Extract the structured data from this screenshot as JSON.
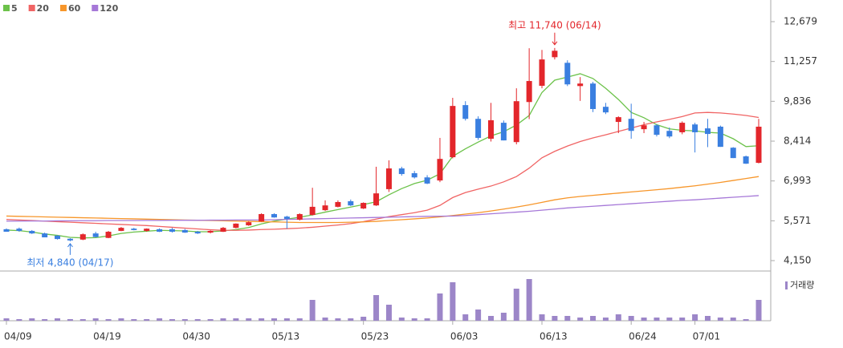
{
  "chart_data": {
    "type": "candlestick",
    "up_color": "#e3262b",
    "down_color": "#3a7fe0",
    "categories": [
      "04/09",
      null,
      null,
      null,
      null,
      null,
      null,
      "04/19",
      null,
      null,
      null,
      null,
      null,
      null,
      "04/30",
      null,
      null,
      null,
      null,
      null,
      null,
      "05/13",
      null,
      null,
      null,
      null,
      null,
      null,
      "05/23",
      null,
      null,
      null,
      null,
      null,
      null,
      "06/03",
      null,
      null,
      null,
      null,
      null,
      null,
      "06/13",
      null,
      null,
      null,
      null,
      null,
      null,
      "06/24",
      null,
      null,
      null,
      null,
      "07/01",
      null,
      null,
      null,
      null,
      null
    ],
    "open": [
      5270,
      5290,
      5210,
      5120,
      5040,
      4930,
      4900,
      5120,
      4960,
      5210,
      5290,
      5210,
      5270,
      5270,
      5240,
      5180,
      5150,
      5180,
      5320,
      5410,
      5550,
      5810,
      5720,
      5610,
      5780,
      5950,
      6070,
      6270,
      6010,
      6120,
      6700,
      7440,
      7270,
      7120,
      7010,
      7840,
      9700,
      9210,
      8500,
      9070,
      8380,
      9810,
      10390,
      11410,
      11210,
      10380,
      10470,
      9640,
      9100,
      9210,
      8840,
      8980,
      8780,
      8730,
      9010,
      8870,
      8930,
      8180,
      7870,
      7640
    ],
    "high": [
      5300,
      5330,
      5240,
      5150,
      5060,
      4950,
      5120,
      5180,
      5210,
      5350,
      5320,
      5300,
      5300,
      5320,
      5280,
      5210,
      5230,
      5350,
      5480,
      5560,
      5840,
      5840,
      5750,
      5840,
      6750,
      6300,
      6300,
      6330,
      6230,
      7500,
      7730,
      7500,
      7350,
      7200,
      8530,
      9960,
      9840,
      9300,
      9780,
      9150,
      10300,
      11730,
      11670,
      11740,
      11300,
      10700,
      10530,
      9780,
      9300,
      9750,
      9100,
      9020,
      8900,
      9120,
      9070,
      9210,
      8970,
      8200,
      7900,
      9210
    ],
    "low": [
      5180,
      5180,
      5100,
      4980,
      4900,
      4840,
      4880,
      4980,
      4950,
      5200,
      5230,
      5180,
      5170,
      5150,
      5140,
      5100,
      5120,
      5170,
      5300,
      5390,
      5540,
      5680,
      5290,
      5580,
      5760,
      5920,
      6050,
      6100,
      5990,
      6100,
      6600,
      7180,
      7080,
      6880,
      6950,
      7800,
      9150,
      8460,
      8400,
      8440,
      8300,
      9200,
      10300,
      11330,
      10380,
      9850,
      9450,
      9380,
      8700,
      8500,
      8700,
      8580,
      8520,
      8660,
      8010,
      8200,
      8210,
      7810,
      7600,
      7620
    ],
    "close": [
      5180,
      5210,
      5120,
      4980,
      4920,
      4870,
      5090,
      4990,
      5180,
      5320,
      5240,
      5290,
      5180,
      5180,
      5150,
      5120,
      5210,
      5320,
      5470,
      5520,
      5810,
      5690,
      5640,
      5810,
      6070,
      6120,
      6240,
      6120,
      6210,
      6550,
      7440,
      7240,
      7120,
      6900,
      7780,
      9670,
      9210,
      8530,
      9160,
      8440,
      9840,
      10560,
      11330,
      11640,
      10440,
      10470,
      9560,
      9440,
      9270,
      8780,
      8980,
      8640,
      8580,
      9070,
      8730,
      8670,
      8210,
      7810,
      7610,
      8930
    ],
    "series": [
      {
        "name": "5",
        "color": "#6cc24a",
        "values": [
          5240,
          5220,
          5170,
          5100,
          5050,
          4980,
          4960,
          4970,
          5030,
          5120,
          5170,
          5200,
          5230,
          5220,
          5210,
          5180,
          5180,
          5210,
          5260,
          5330,
          5460,
          5560,
          5630,
          5700,
          5780,
          5880,
          5970,
          6060,
          6150,
          6250,
          6500,
          6720,
          6900,
          7020,
          7250,
          7870,
          8140,
          8380,
          8600,
          8750,
          8990,
          9330,
          10150,
          10590,
          10700,
          10820,
          10650,
          10300,
          9900,
          9440,
          9250,
          9000,
          8850,
          8800,
          8780,
          8730,
          8700,
          8500,
          8220,
          8250
        ]
      },
      {
        "name": "20",
        "color": "#f06464",
        "values": [
          5620,
          5600,
          5580,
          5560,
          5540,
          5520,
          5500,
          5480,
          5460,
          5440,
          5420,
          5400,
          5370,
          5340,
          5310,
          5280,
          5250,
          5230,
          5230,
          5240,
          5260,
          5270,
          5290,
          5310,
          5340,
          5380,
          5420,
          5470,
          5540,
          5630,
          5720,
          5790,
          5860,
          5950,
          6120,
          6400,
          6580,
          6700,
          6810,
          6960,
          7150,
          7450,
          7820,
          8050,
          8240,
          8400,
          8530,
          8640,
          8760,
          8880,
          9000,
          9100,
          9190,
          9290,
          9420,
          9440,
          9420,
          9380,
          9330,
          9260
        ]
      },
      {
        "name": "60",
        "color": "#f7962a",
        "values": [
          5740,
          5730,
          5720,
          5710,
          5700,
          5690,
          5680,
          5670,
          5660,
          5650,
          5640,
          5630,
          5620,
          5610,
          5600,
          5590,
          5580,
          5570,
          5560,
          5550,
          5540,
          5530,
          5520,
          5510,
          5510,
          5510,
          5510,
          5520,
          5530,
          5550,
          5580,
          5610,
          5640,
          5670,
          5710,
          5760,
          5810,
          5860,
          5920,
          5990,
          6060,
          6140,
          6230,
          6320,
          6390,
          6440,
          6480,
          6520,
          6560,
          6600,
          6640,
          6680,
          6720,
          6770,
          6820,
          6880,
          6940,
          7010,
          7080,
          7150
        ]
      },
      {
        "name": "120",
        "color": "#a678d8",
        "values": [
          5560,
          5560,
          5564,
          5564,
          5570,
          5570,
          5574,
          5574,
          5580,
          5580,
          5580,
          5584,
          5584,
          5590,
          5590,
          5590,
          5594,
          5594,
          5600,
          5600,
          5600,
          5610,
          5620,
          5630,
          5640,
          5650,
          5660,
          5670,
          5680,
          5690,
          5700,
          5710,
          5720,
          5730,
          5735,
          5740,
          5760,
          5790,
          5820,
          5850,
          5880,
          5910,
          5950,
          5990,
          6030,
          6060,
          6090,
          6120,
          6150,
          6180,
          6210,
          6240,
          6270,
          6300,
          6320,
          6350,
          6380,
          6410,
          6440,
          6470
        ]
      }
    ],
    "volume": {
      "name": "거래량",
      "color": "#9c86c8",
      "ylim": [
        0,
        55
      ],
      "values": [
        3,
        2,
        3,
        2,
        3,
        2,
        2,
        3,
        2,
        3,
        2,
        2,
        3,
        2,
        2,
        2,
        2,
        3,
        3,
        3,
        3,
        3,
        3,
        3,
        26,
        4,
        3,
        3,
        5,
        32,
        20,
        4,
        3,
        3,
        34,
        48,
        8,
        14,
        6,
        10,
        40,
        52,
        8,
        6,
        6,
        4,
        6,
        4,
        8,
        6,
        4,
        4,
        4,
        4,
        8,
        6,
        4,
        4,
        2,
        26
      ]
    },
    "high_label": "최고 11,740 (06/14)",
    "low_label": "최저 4,840 (04/17)",
    "ylim": [
      4150,
      12679
    ],
    "yticks": [
      {
        "value": 4150,
        "label": "4,150"
      },
      {
        "value": 5571,
        "label": "5,571"
      },
      {
        "value": 6993,
        "label": "6,993"
      },
      {
        "value": 8414,
        "label": "8,414"
      },
      {
        "value": 9836,
        "label": "9,836"
      },
      {
        "value": 11257,
        "label": "11,257"
      },
      {
        "value": 12679,
        "label": "12,679"
      }
    ]
  }
}
